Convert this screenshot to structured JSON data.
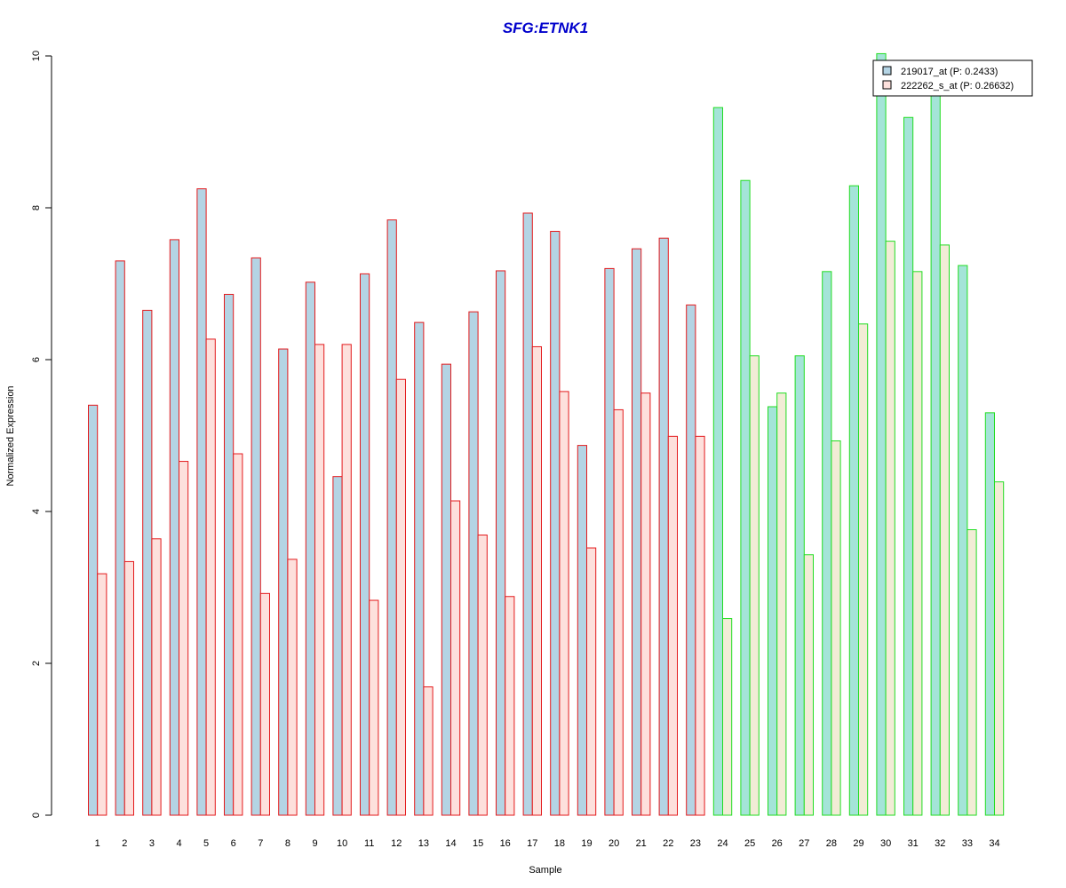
{
  "colors": {
    "title": "#0000cc",
    "group1_border": "#e31a1c",
    "group2_border": "#22dd22",
    "probe1_fill_group1": "#b4d4e4",
    "probe2_fill_group1": "#fde0dc",
    "probe1_fill_group2": "#a4e4d8",
    "probe2_fill_group2": "#f2ecd6",
    "legend_swatch1": "#b4d4e4",
    "legend_swatch2": "#fde0dc"
  },
  "chart_data": {
    "type": "bar",
    "title": "SFG:ETNK1",
    "xlabel": "Sample",
    "ylabel": "Normalized Expression",
    "ylim": [
      0,
      10
    ],
    "yticks": [
      "0",
      "2",
      "4",
      "6",
      "8",
      "10"
    ],
    "categories": [
      "1",
      "2",
      "3",
      "4",
      "5",
      "6",
      "7",
      "8",
      "9",
      "10",
      "11",
      "12",
      "13",
      "14",
      "15",
      "16",
      "17",
      "18",
      "19",
      "20",
      "21",
      "22",
      "23",
      "24",
      "25",
      "26",
      "27",
      "28",
      "29",
      "30",
      "31",
      "32",
      "33",
      "34"
    ],
    "group2_start_index": 23,
    "legend_position": "top-right",
    "series": [
      {
        "name": "219017_at (P: 0.2433)",
        "values": [
          5.4,
          7.3,
          6.65,
          7.58,
          8.25,
          6.86,
          7.34,
          6.14,
          7.02,
          4.46,
          7.13,
          7.84,
          6.49,
          5.94,
          6.63,
          7.17,
          7.93,
          7.69,
          4.87,
          7.2,
          7.46,
          7.6,
          6.72,
          9.32,
          8.36,
          5.38,
          6.05,
          7.16,
          8.29,
          10.03,
          9.19,
          9.5,
          7.24,
          5.3
        ]
      },
      {
        "name": "222262_s_at (P: 0.26632)",
        "values": [
          3.18,
          3.34,
          3.64,
          4.66,
          6.27,
          4.76,
          2.92,
          3.37,
          6.2,
          6.2,
          2.83,
          5.74,
          1.69,
          4.14,
          3.69,
          2.88,
          6.17,
          5.58,
          3.52,
          5.34,
          5.56,
          4.99,
          4.99,
          2.59,
          6.05,
          5.56,
          3.43,
          4.93,
          6.47,
          7.56,
          7.16,
          7.51,
          3.76,
          4.39
        ]
      }
    ]
  }
}
